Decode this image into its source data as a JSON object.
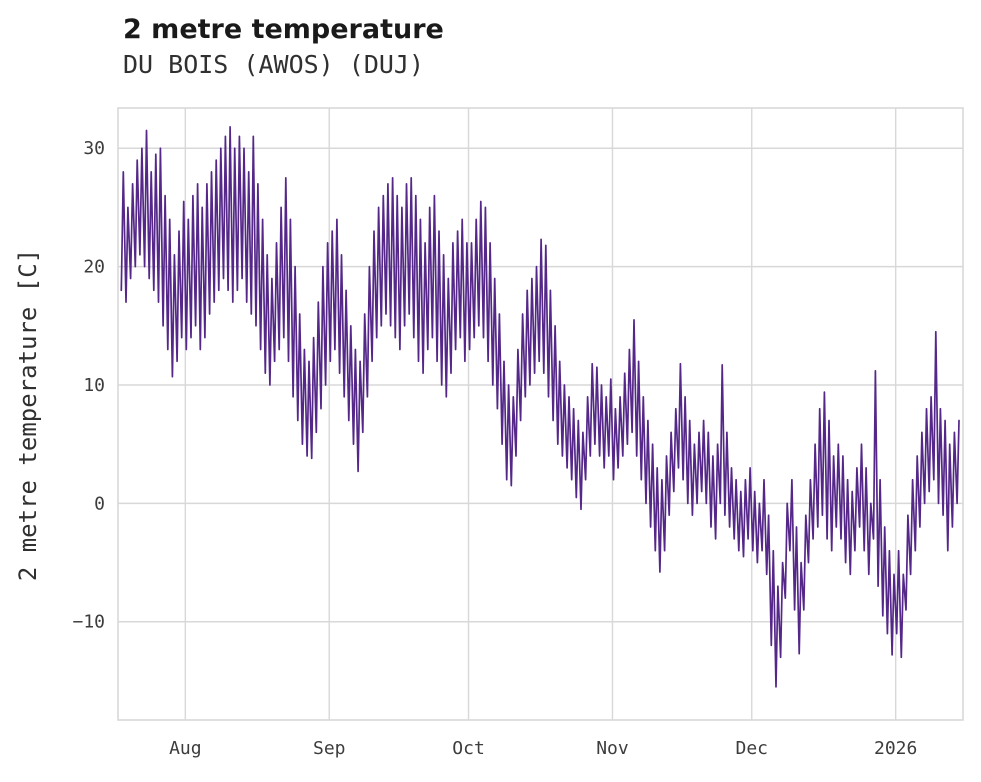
{
  "header": {
    "title": "2 metre temperature",
    "subtitle": "DU BOIS (AWOS) (DUJ)"
  },
  "chart_data": {
    "type": "line",
    "title": "2 metre temperature",
    "subtitle": "DU BOIS (AWOS) (DUJ)",
    "xlabel": "",
    "ylabel": "2 metre temperature [C]",
    "line_color": "#542788",
    "grid_color": "#d8d8d8",
    "grid": true,
    "legend": "none",
    "ylim": [
      -18.3,
      33.4
    ],
    "xlim": [
      -0.5,
      181.5
    ],
    "y_ticks": [
      {
        "v": -10,
        "label": "−10"
      },
      {
        "v": 0,
        "label": "0"
      },
      {
        "v": 10,
        "label": "10"
      },
      {
        "v": 20,
        "label": "20"
      },
      {
        "v": 30,
        "label": "30"
      }
    ],
    "x_ticks": [
      {
        "day": 14,
        "label": "Aug"
      },
      {
        "day": 45,
        "label": "Sep"
      },
      {
        "day": 75,
        "label": "Oct"
      },
      {
        "day": 106,
        "label": "Nov"
      },
      {
        "day": 136,
        "label": "Dec"
      },
      {
        "day": 167,
        "label": "2026"
      }
    ],
    "x_unit": "days from series start (mid-July) to mid-January",
    "daily_min_max": [
      [
        18,
        28
      ],
      [
        17,
        25
      ],
      [
        19,
        27
      ],
      [
        20,
        29
      ],
      [
        21,
        30
      ],
      [
        20,
        31.5
      ],
      [
        19,
        28
      ],
      [
        18,
        29.5
      ],
      [
        17,
        30
      ],
      [
        15,
        26
      ],
      [
        13,
        24
      ],
      [
        10.7,
        21
      ],
      [
        12,
        23
      ],
      [
        14,
        25.5
      ],
      [
        13,
        24
      ],
      [
        14,
        26
      ],
      [
        15,
        27
      ],
      [
        13,
        25
      ],
      [
        14,
        27
      ],
      [
        16,
        28
      ],
      [
        17,
        29
      ],
      [
        18,
        30
      ],
      [
        19,
        31
      ],
      [
        18,
        31.8
      ],
      [
        17,
        30
      ],
      [
        18,
        31
      ],
      [
        19,
        30
      ],
      [
        17,
        28
      ],
      [
        16,
        31
      ],
      [
        15,
        27
      ],
      [
        13,
        24
      ],
      [
        11,
        21
      ],
      [
        10,
        19
      ],
      [
        12,
        22
      ],
      [
        13,
        25
      ],
      [
        14,
        27.5
      ],
      [
        12,
        24
      ],
      [
        9,
        20
      ],
      [
        7,
        16
      ],
      [
        5,
        13
      ],
      [
        4,
        12
      ],
      [
        3.8,
        14
      ],
      [
        6,
        17
      ],
      [
        8,
        20
      ],
      [
        10,
        22
      ],
      [
        12,
        23
      ],
      [
        13,
        24
      ],
      [
        11,
        21
      ],
      [
        9,
        18
      ],
      [
        7,
        15
      ],
      [
        5,
        13
      ],
      [
        2.7,
        12
      ],
      [
        6,
        16
      ],
      [
        9,
        20
      ],
      [
        12,
        23
      ],
      [
        14,
        25
      ],
      [
        15,
        26
      ],
      [
        16,
        27
      ],
      [
        15,
        27.5
      ],
      [
        14,
        26
      ],
      [
        13,
        25
      ],
      [
        15,
        27
      ],
      [
        16,
        27.5
      ],
      [
        14,
        26
      ],
      [
        12,
        24
      ],
      [
        11,
        22
      ],
      [
        13,
        25
      ],
      [
        14,
        26
      ],
      [
        12,
        23
      ],
      [
        10,
        21
      ],
      [
        9,
        19
      ],
      [
        11,
        22
      ],
      [
        13,
        23
      ],
      [
        14,
        24
      ],
      [
        12,
        22
      ],
      [
        13,
        22
      ],
      [
        14,
        24
      ],
      [
        15,
        25.5
      ],
      [
        14,
        25
      ],
      [
        12,
        22
      ],
      [
        10,
        19
      ],
      [
        8,
        16
      ],
      [
        5,
        12
      ],
      [
        2,
        10
      ],
      [
        1.5,
        9
      ],
      [
        4,
        13
      ],
      [
        7,
        16
      ],
      [
        9,
        18
      ],
      [
        10,
        19
      ],
      [
        11,
        20
      ],
      [
        12,
        22.3
      ],
      [
        11,
        21.8
      ],
      [
        9,
        18
      ],
      [
        7,
        15
      ],
      [
        5,
        12
      ],
      [
        4,
        10
      ],
      [
        3,
        9
      ],
      [
        2,
        8
      ],
      [
        0.5,
        7
      ],
      [
        -0.5,
        6
      ],
      [
        2,
        9
      ],
      [
        4,
        11.8
      ],
      [
        5,
        11.5
      ],
      [
        4,
        10
      ],
      [
        3,
        9
      ],
      [
        4,
        10.5
      ],
      [
        2,
        8
      ],
      [
        3,
        9
      ],
      [
        4,
        11
      ],
      [
        5,
        13
      ],
      [
        6,
        15.5
      ],
      [
        4,
        12
      ],
      [
        2,
        9
      ],
      [
        0,
        7
      ],
      [
        -2,
        5
      ],
      [
        -4,
        3
      ],
      [
        -5.8,
        2
      ],
      [
        -4,
        4
      ],
      [
        -1,
        6
      ],
      [
        1,
        8
      ],
      [
        3,
        11.8
      ],
      [
        2,
        9
      ],
      [
        0,
        7
      ],
      [
        -1,
        5
      ],
      [
        0,
        6
      ],
      [
        1,
        7
      ],
      [
        0,
        6
      ],
      [
        -2,
        4
      ],
      [
        -3,
        5
      ],
      [
        0,
        11.7
      ],
      [
        -1,
        6
      ],
      [
        -2,
        3
      ],
      [
        -3,
        2
      ],
      [
        -4,
        1
      ],
      [
        -4.5,
        2
      ],
      [
        -3,
        3
      ],
      [
        -4,
        1
      ],
      [
        -5,
        0
      ],
      [
        -4,
        2
      ],
      [
        -6,
        -1
      ],
      [
        -12,
        -4
      ],
      [
        -15.5,
        -7
      ],
      [
        -13,
        -5
      ],
      [
        -8,
        0
      ],
      [
        -4,
        2
      ],
      [
        -9,
        -2
      ],
      [
        -12.7,
        -5
      ],
      [
        -9,
        -1
      ],
      [
        -5,
        2
      ],
      [
        -3,
        5
      ],
      [
        -2,
        8
      ],
      [
        -1,
        9.4
      ],
      [
        -3,
        7
      ],
      [
        -4,
        4
      ],
      [
        -2,
        5
      ],
      [
        -3,
        4
      ],
      [
        -5,
        2
      ],
      [
        -6,
        1
      ],
      [
        -4,
        3
      ],
      [
        -2,
        5
      ],
      [
        -4,
        3
      ],
      [
        -6,
        0
      ],
      [
        -3,
        11.2
      ],
      [
        -7,
        2
      ],
      [
        -9.5,
        -2
      ],
      [
        -11,
        -4
      ],
      [
        -12.8,
        -6
      ],
      [
        -11,
        -4
      ],
      [
        -13,
        -6
      ],
      [
        -9,
        -1
      ],
      [
        -6,
        2
      ],
      [
        -4,
        4
      ],
      [
        -2,
        6
      ],
      [
        0,
        8
      ],
      [
        1,
        9
      ],
      [
        2,
        14.5
      ],
      [
        0,
        8
      ],
      [
        -1,
        7
      ],
      [
        -4,
        5
      ],
      [
        -2,
        6
      ],
      [
        0,
        7
      ]
    ]
  }
}
